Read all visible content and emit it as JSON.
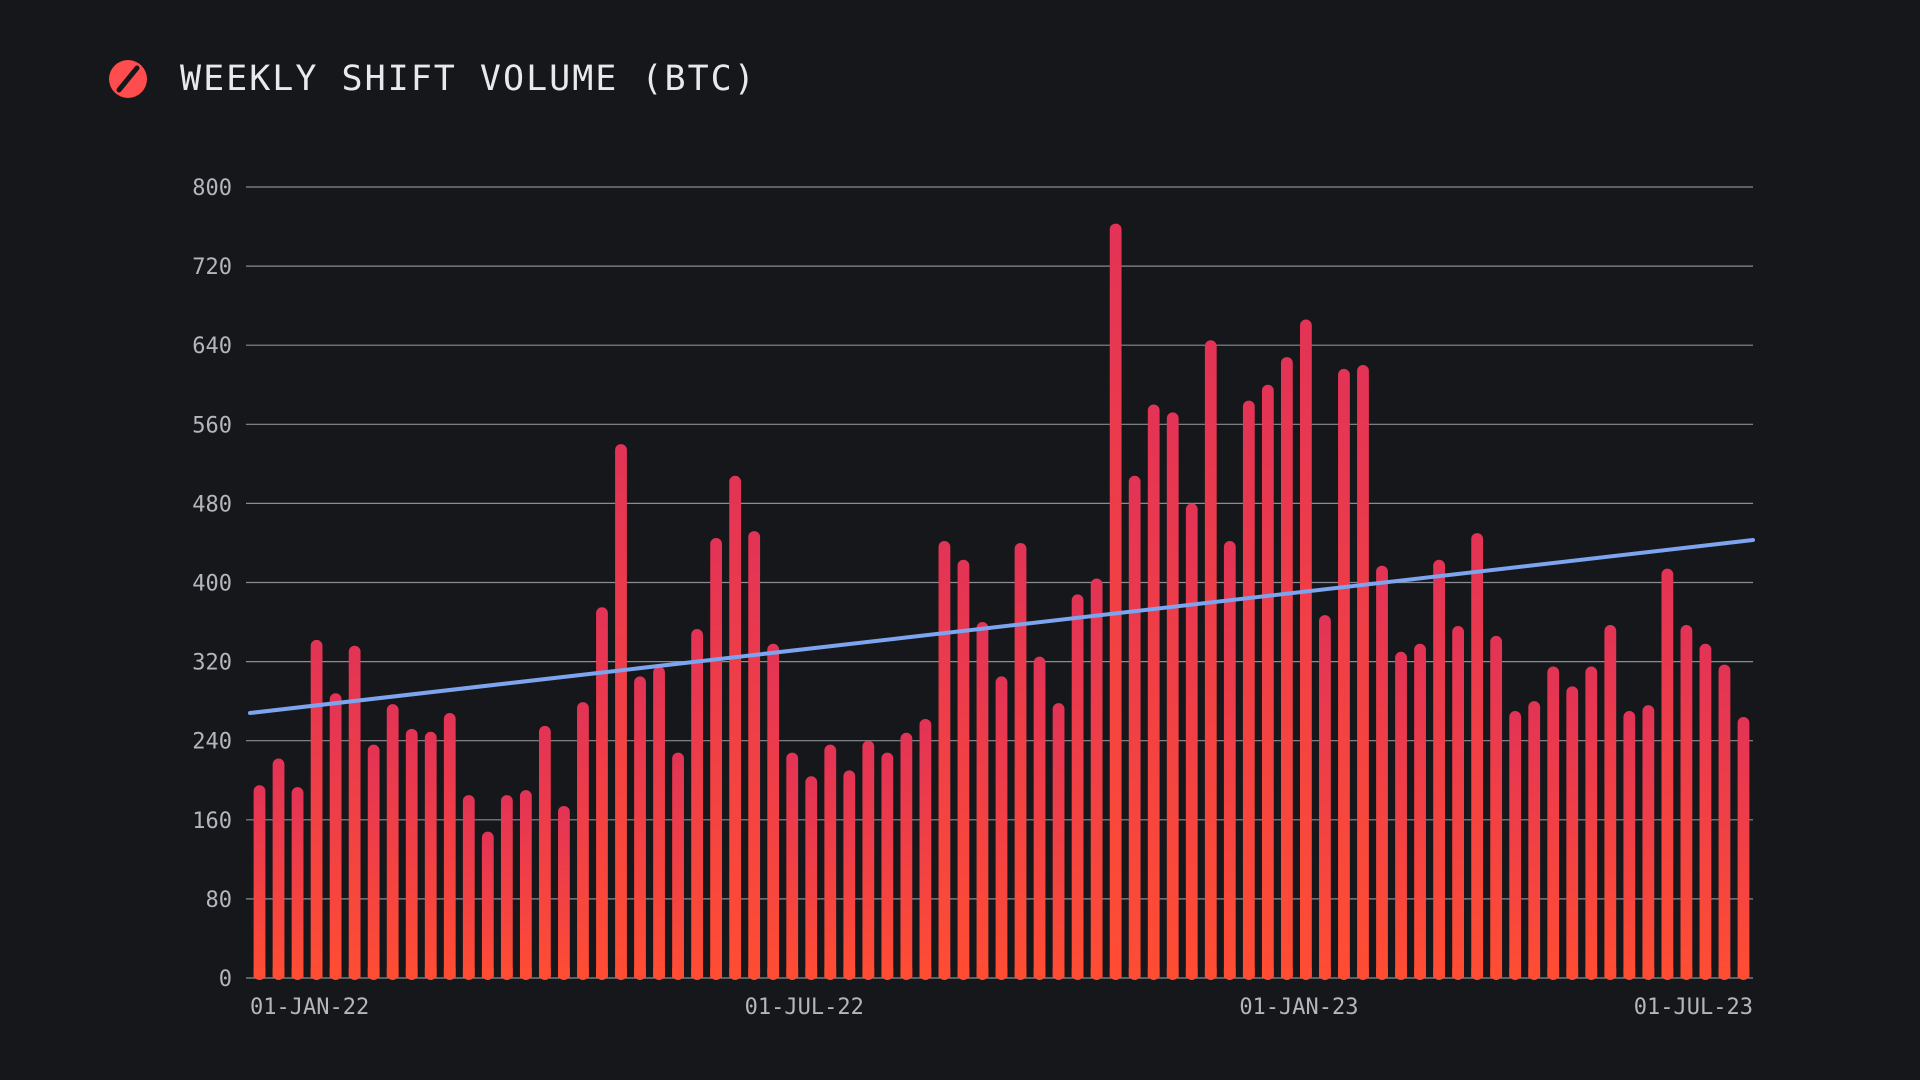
{
  "header": {
    "title": "Weekly Shift Volume (BTC)"
  },
  "colors": {
    "background": "#16171b",
    "bar_top": "#e33356",
    "bar_bottom": "#ff4d33",
    "trend": "#7da4ef",
    "grid": "#8a8c93",
    "logo": "#ff4d4f"
  },
  "chart_data": {
    "type": "bar",
    "title": "Weekly Shift Volume (BTC)",
    "xlabel": "",
    "ylabel": "",
    "ylim": [
      0,
      800
    ],
    "yticks": [
      0,
      80,
      160,
      240,
      320,
      400,
      480,
      560,
      640,
      720,
      800
    ],
    "grid": true,
    "legend": "none",
    "x_tick_labels": [
      "01-JAN-22",
      "01-JUL-22",
      "01-JAN-23",
      "01-JUL-23"
    ],
    "x_tick_positions": [
      0,
      26,
      52,
      78
    ],
    "values": [
      195,
      222,
      193,
      342,
      288,
      336,
      236,
      277,
      252,
      249,
      268,
      185,
      148,
      185,
      190,
      255,
      174,
      279,
      375,
      540,
      305,
      315,
      228,
      353,
      445,
      508,
      452,
      338,
      228,
      204,
      236,
      210,
      240,
      228,
      248,
      262,
      442,
      423,
      360,
      305,
      440,
      325,
      278,
      388,
      404,
      763,
      508,
      580,
      572,
      480,
      645,
      442,
      584,
      600,
      628,
      666,
      367,
      616,
      620,
      417,
      330,
      338,
      423,
      356,
      450,
      346,
      270,
      280,
      315,
      295,
      315,
      357,
      270,
      276,
      414,
      357,
      338,
      317,
      264
    ],
    "trend": {
      "name": "",
      "start": 268,
      "end": 443
    }
  }
}
